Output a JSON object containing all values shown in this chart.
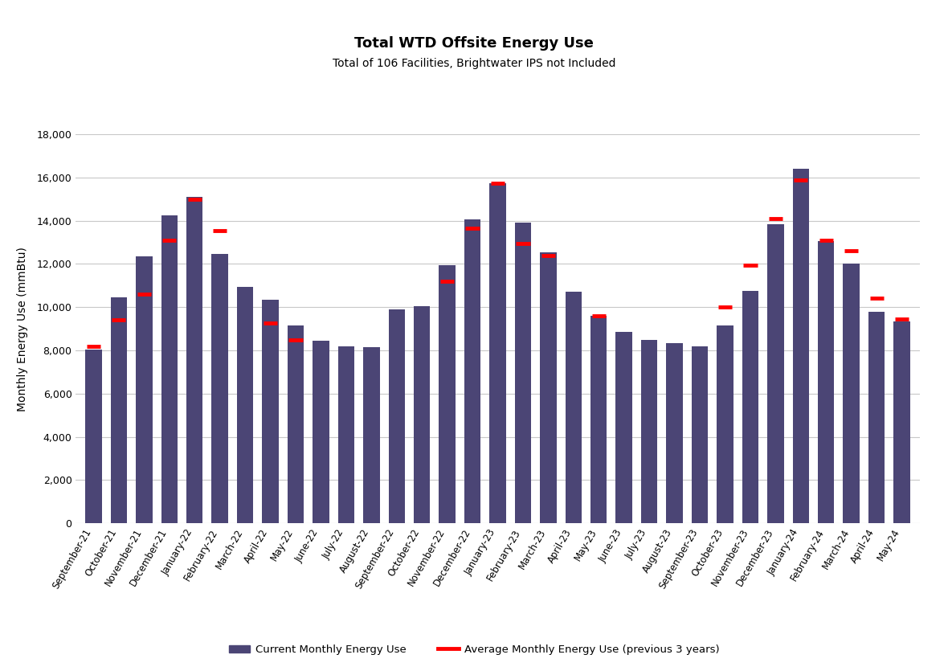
{
  "title": "Total WTD Offsite Energy Use",
  "subtitle": "Total of 106 Facilities, Brightwater IPS not Included",
  "ylabel": "Monthly Energy Use (mmBtu)",
  "bar_color": "#4B4575",
  "avg_color": "#FF0000",
  "categories": [
    "September-21",
    "October-21",
    "November-21",
    "December-21",
    "January-22",
    "February-22",
    "March-22",
    "April-22",
    "May-22",
    "June-22",
    "July-22",
    "August-22",
    "September-22",
    "October-22",
    "November-22",
    "December-22",
    "January-23",
    "February-23",
    "March-23",
    "April-23",
    "May-23",
    "June-23",
    "July-23",
    "August-23",
    "September-23",
    "October-23",
    "November-23",
    "December-23",
    "January-24",
    "February-24",
    "March-24",
    "April-24",
    "May-24"
  ],
  "bar_values": [
    8050,
    10450,
    12350,
    14250,
    15100,
    12450,
    10950,
    10350,
    9150,
    8450,
    8200,
    8150,
    9900,
    10050,
    11950,
    14050,
    15750,
    13900,
    12550,
    10700,
    9600,
    8850,
    8500,
    8350,
    8200,
    9150,
    10750,
    13850,
    16400,
    13050,
    12000,
    9800,
    9350
  ],
  "avg_values": [
    8200,
    9400,
    10600,
    13100,
    15000,
    13550,
    null,
    9250,
    8500,
    null,
    null,
    null,
    null,
    null,
    11200,
    13650,
    15750,
    12950,
    12400,
    null,
    9600,
    null,
    null,
    null,
    null,
    10000,
    11950,
    14100,
    15900,
    13100,
    12600,
    10400,
    9450
  ],
  "ylim": [
    0,
    18000
  ],
  "yticks": [
    0,
    2000,
    4000,
    6000,
    8000,
    10000,
    12000,
    14000,
    16000,
    18000
  ],
  "legend_bar_label": "Current Monthly Energy Use",
  "legend_avg_label": "Average Monthly Energy Use (previous 3 years)",
  "background_color": "#ffffff",
  "grid_color": "#c8c8c8",
  "title_fontsize": 13,
  "subtitle_fontsize": 10,
  "subtitle_color": "#000000",
  "ylabel_fontsize": 10
}
